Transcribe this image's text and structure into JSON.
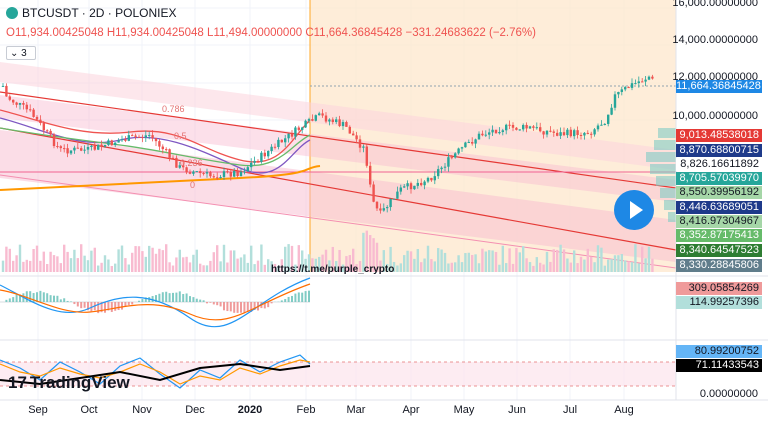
{
  "header": {
    "symbol": "BTCUSDT · 2D · POLONIEX",
    "ohlc": {
      "open": "O11,934.00425048",
      "high": "H11,934.00425048",
      "low": "L11,494.00000000",
      "close": "C11,664.36845428",
      "change": "−331.24683622 (−2.76%)"
    },
    "indicator_count": "3"
  },
  "watermark_url": "https://t.me/purple_crypto",
  "logo_text": "TradingView",
  "price_axis": {
    "ticks": [
      "16,000.00000000",
      "14,000.00000000",
      "12,000.00000000",
      "10,000.00000000",
      "0.00000000"
    ],
    "last_price_label": "11,664.36845428",
    "tags": [
      {
        "text": "9,013.48538018",
        "bg": "#e53935",
        "fg": "#ffffff"
      },
      {
        "text": "8,870.68800715",
        "bg": "#1e3a8a",
        "fg": "#ffffff"
      },
      {
        "text": "8,826.16611892",
        "bg": "#ffffff",
        "fg": "#131722"
      },
      {
        "text": "8,705.57039970",
        "bg": "#26a69a",
        "fg": "#ffffff"
      },
      {
        "text": "8,550.39956192",
        "bg": "#a5d6a7",
        "fg": "#131722"
      },
      {
        "text": "8,446.63689051",
        "bg": "#1e3a8a",
        "fg": "#ffffff"
      },
      {
        "text": "8,416.97304967",
        "bg": "#a5d6a7",
        "fg": "#131722"
      },
      {
        "text": "8,352.87175413",
        "bg": "#66bb6a",
        "fg": "#ffffff"
      },
      {
        "text": "8,340.64547523",
        "bg": "#2e7d32",
        "fg": "#ffffff"
      },
      {
        "text": "8,330.28845806",
        "bg": "#607d8b",
        "fg": "#ffffff"
      },
      {
        "text": "309.05854269",
        "bg": "#ef9a9a",
        "fg": "#131722"
      },
      {
        "text": "114.99257396",
        "bg": "#b2dfdb",
        "fg": "#131722"
      },
      {
        "text": "80.99200752",
        "bg": "#64b5f6",
        "fg": "#131722"
      },
      {
        "text": "71.11433543",
        "bg": "#000000",
        "fg": "#ffffff"
      }
    ]
  },
  "time_axis": [
    "Sep",
    "Oct",
    "Nov",
    "Dec",
    "2020",
    "Feb",
    "Mar",
    "Apr",
    "May",
    "Jun",
    "Jul",
    "Aug"
  ],
  "fib_labels": [
    "0.786",
    "0.5",
    "0.236",
    "0"
  ],
  "colors": {
    "up": "#26a69a",
    "down": "#ef5350",
    "forecast_bg": "#fde7cc",
    "channel": "#e53935",
    "accent": "#1e88e5"
  }
}
